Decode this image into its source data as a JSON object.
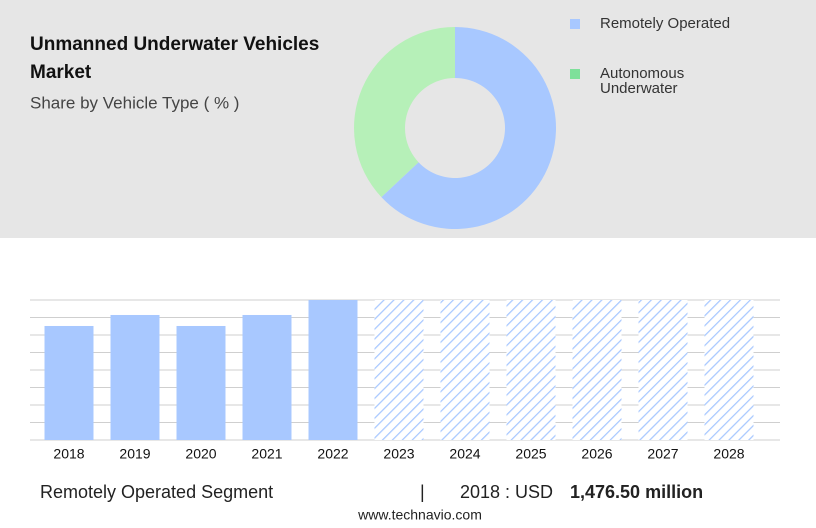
{
  "chart_data": [
    {
      "type": "donut",
      "title": "Unmanned Underwater Vehicles Market",
      "subtitle": "Share by Vehicle Type ( % )",
      "categories": [
        "Remotely Operated",
        "Autonomous Underwater"
      ],
      "values": [
        63,
        37
      ],
      "colors": [
        "#a8c8ff",
        "#b6f0b8"
      ],
      "legend_colors": [
        "#a8c8ff",
        "#7ee09a"
      ]
    },
    {
      "type": "bar",
      "categories": [
        "2018",
        "2019",
        "2020",
        "2021",
        "2022",
        "2023",
        "2024",
        "2025",
        "2026",
        "2027",
        "2028"
      ],
      "values": [
        1476.5,
        1619,
        1476.5,
        1619,
        1813,
        null,
        null,
        null,
        null,
        null,
        null
      ],
      "color": "#a8c8ff",
      "ylim": [
        0,
        1813
      ],
      "grid": true
    }
  ],
  "footer": {
    "segment": "Remotely Operated Segment",
    "separator": "|",
    "year_label": "2018 : USD",
    "amount": "1,476.50 million",
    "source": "www.technavio.com"
  }
}
